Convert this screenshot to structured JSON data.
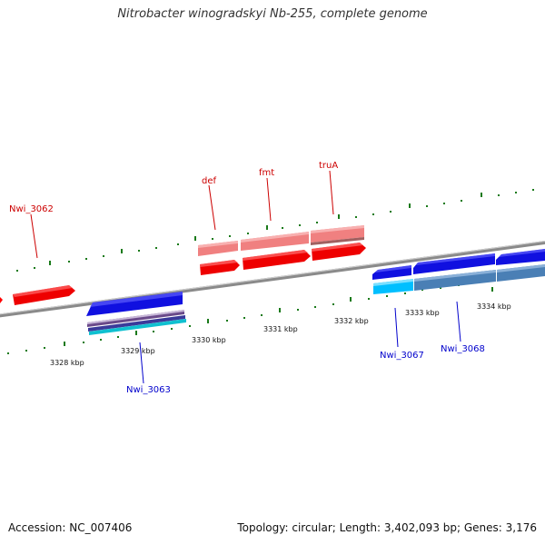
{
  "title": "Nitrobacter winogradskyi Nb-255, complete genome",
  "footer": {
    "accession": "Accession: NC_007406",
    "summary": "Topology: circular; Length: 3,402,093 bp; Genes: 3,176"
  },
  "colors": {
    "forward_gene": "#ff0000",
    "forward_gene_light": "#f08080",
    "reverse_gene": "#0000ee",
    "reverse_cds_cyan": "#00bfff",
    "reverse_cds_steel": "#4a7fb5",
    "axis": "#888888",
    "tick": "#1a7a1a",
    "forward_label": "#cc0000",
    "reverse_label": "#0000cc"
  },
  "scale_labels": [
    "3328 kbp",
    "3329 kbp",
    "3330 kbp",
    "3331 kbp",
    "3332 kbp",
    "3333 kbp",
    "3334 kbp"
  ],
  "forward_genes": [
    {
      "name": "Nwi_3062"
    },
    {
      "name": "def"
    },
    {
      "name": "fmt"
    },
    {
      "name": "truA"
    }
  ],
  "reverse_genes": [
    {
      "name": "Nwi_3063"
    },
    {
      "name": "Nwi_3067"
    },
    {
      "name": "Nwi_3068"
    }
  ]
}
